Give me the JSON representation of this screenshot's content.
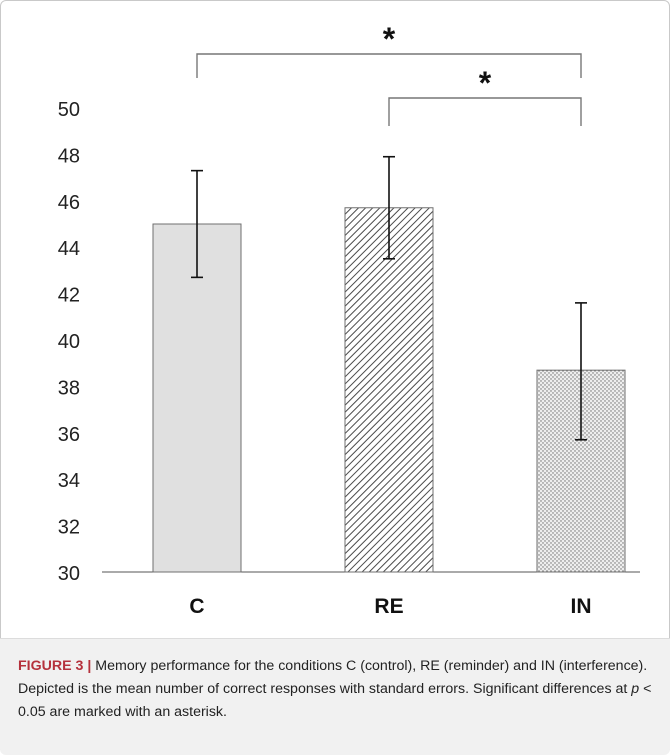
{
  "chart_data": {
    "type": "bar",
    "categories": [
      "C",
      "RE",
      "IN"
    ],
    "values": [
      45.0,
      45.7,
      38.7
    ],
    "error_high": [
      47.3,
      47.9,
      41.6
    ],
    "error_low": [
      42.7,
      43.5,
      35.7
    ],
    "fills": [
      "solid-light-gray",
      "diagonal-hatch",
      "dotted"
    ],
    "ylim": [
      30,
      50
    ],
    "yticks": [
      "30",
      "32",
      "34",
      "36",
      "38",
      "40",
      "42",
      "44",
      "46",
      "48",
      "50"
    ],
    "significance": [
      {
        "from": "C",
        "to": "IN",
        "marker": "*"
      },
      {
        "from": "RE",
        "to": "IN",
        "marker": "*"
      }
    ],
    "grid": false,
    "title": "",
    "xlabel": "",
    "ylabel": ""
  },
  "caption": {
    "label": "FIGURE 3 |",
    "text": " Memory performance for the conditions C (control), RE (reminder) and IN (interference). Depicted is the mean number of correct responses with standard errors. Significant differences at ",
    "p_symbol": "p",
    "text_end": " < 0.05 are marked with an asterisk."
  },
  "colors": {
    "bar_fill": "#e0e0e0",
    "bar_stroke": "#6f6f6f",
    "axis": "#555555",
    "caption_label": "#b5313c",
    "caption_bg": "#f1f1f1"
  }
}
